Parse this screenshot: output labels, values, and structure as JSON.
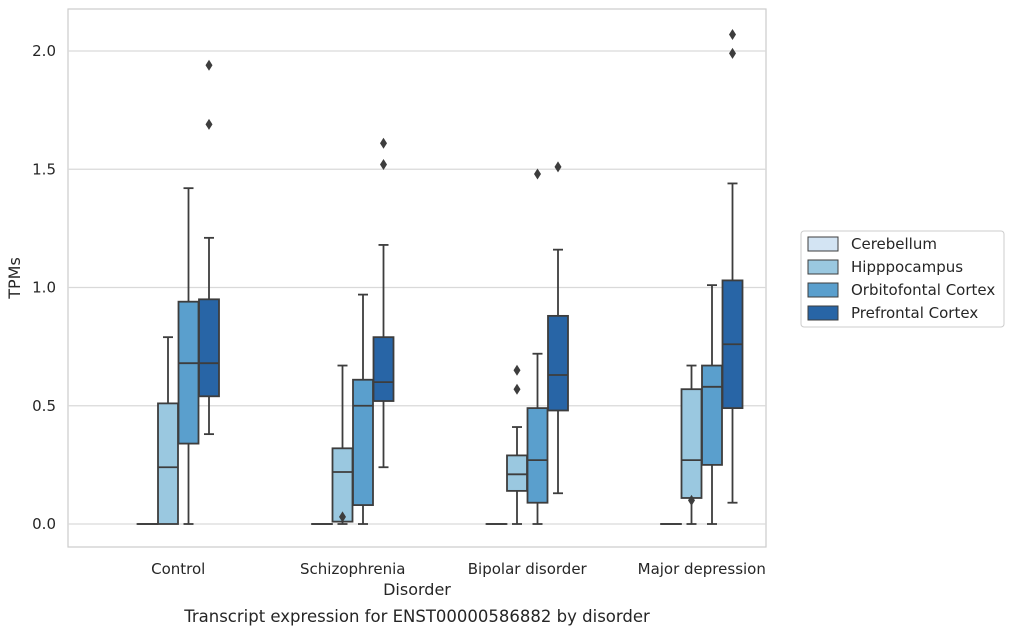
{
  "chart_data": {
    "type": "box",
    "title": "",
    "caption": "Transcript expression for ENST00000586882 by disorder",
    "xlabel": "Disorder",
    "ylabel": "TPMs",
    "ylim": [
      -0.1,
      2.18
    ],
    "yticks": [
      "0.0",
      "0.5",
      "1.0",
      "1.5",
      "2.0"
    ],
    "ytick_values": [
      0.0,
      0.5,
      1.0,
      1.5,
      2.0
    ],
    "grid": true,
    "legend_position": "right",
    "categories": [
      "Control",
      "Schizophrenia",
      "Bipolar disorder",
      "Major depression"
    ],
    "series": [
      {
        "name": "Cerebellum",
        "color": "#d3e4f3",
        "boxes": [
          {
            "whislo": 0.0,
            "q1": 0.0,
            "med": 0.0,
            "q3": 0.0,
            "whishi": 0.0,
            "fliers": []
          },
          {
            "whislo": 0.0,
            "q1": 0.0,
            "med": 0.0,
            "q3": 0.0,
            "whishi": 0.0,
            "fliers": []
          },
          {
            "whislo": 0.0,
            "q1": 0.0,
            "med": 0.0,
            "q3": 0.0,
            "whishi": 0.0,
            "fliers": []
          },
          {
            "whislo": 0.0,
            "q1": 0.0,
            "med": 0.0,
            "q3": 0.0,
            "whishi": 0.0,
            "fliers": []
          }
        ]
      },
      {
        "name": "Hipppocampus",
        "color": "#9ac8e0",
        "boxes": [
          {
            "whislo": 0.0,
            "q1": 0.0,
            "med": 0.24,
            "q3": 0.51,
            "whishi": 0.79,
            "fliers": []
          },
          {
            "whislo": 0.0,
            "q1": 0.01,
            "med": 0.22,
            "q3": 0.32,
            "whishi": 0.67,
            "fliers": [
              0.03
            ]
          },
          {
            "whislo": 0.0,
            "q1": 0.14,
            "med": 0.21,
            "q3": 0.29,
            "whishi": 0.41,
            "fliers": [
              0.57,
              0.65
            ]
          },
          {
            "whislo": 0.0,
            "q1": 0.11,
            "med": 0.27,
            "q3": 0.57,
            "whishi": 0.67,
            "fliers": [
              0.1
            ]
          }
        ]
      },
      {
        "name": "Orbitofontal Cortex",
        "color": "#5a9fcd",
        "boxes": [
          {
            "whislo": 0.0,
            "q1": 0.34,
            "med": 0.68,
            "q3": 0.94,
            "whishi": 1.42,
            "fliers": []
          },
          {
            "whislo": 0.0,
            "q1": 0.08,
            "med": 0.5,
            "q3": 0.61,
            "whishi": 0.97,
            "fliers": []
          },
          {
            "whislo": 0.0,
            "q1": 0.09,
            "med": 0.27,
            "q3": 0.49,
            "whishi": 0.72,
            "fliers": [
              1.48
            ]
          },
          {
            "whislo": 0.0,
            "q1": 0.25,
            "med": 0.58,
            "q3": 0.67,
            "whishi": 1.01,
            "fliers": []
          }
        ]
      },
      {
        "name": "Prefrontal Cortex",
        "color": "#2865a6",
        "boxes": [
          {
            "whislo": 0.38,
            "q1": 0.54,
            "med": 0.68,
            "q3": 0.95,
            "whishi": 1.21,
            "fliers": [
              1.69,
              1.94
            ]
          },
          {
            "whislo": 0.24,
            "q1": 0.52,
            "med": 0.6,
            "q3": 0.79,
            "whishi": 1.18,
            "fliers": [
              1.52,
              1.61
            ]
          },
          {
            "whislo": 0.13,
            "q1": 0.48,
            "med": 0.63,
            "q3": 0.88,
            "whishi": 1.16,
            "fliers": [
              1.51
            ]
          },
          {
            "whislo": 0.09,
            "q1": 0.49,
            "med": 0.76,
            "q3": 1.03,
            "whishi": 1.44,
            "fliers": [
              1.99,
              2.07
            ]
          }
        ]
      }
    ]
  }
}
